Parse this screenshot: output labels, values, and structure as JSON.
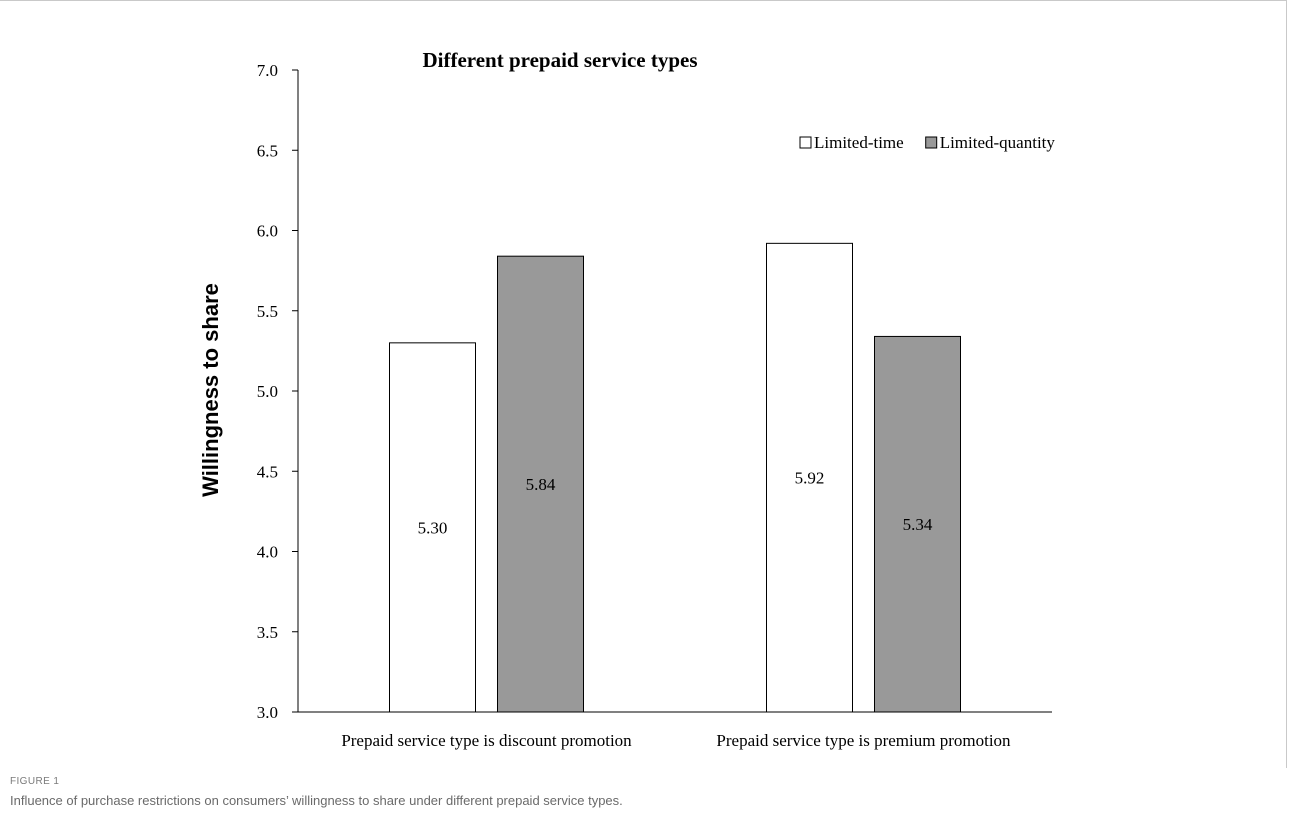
{
  "figure": {
    "label": "FIGURE 1",
    "caption": "Influence of purchase restrictions on consumers’ willingness to share under different prepaid service types."
  },
  "chart_data": {
    "type": "bar",
    "title": "Different prepaid service types",
    "xlabel": "",
    "ylabel": "Willingness to share",
    "ylim": [
      3.0,
      7.0
    ],
    "yticks": [
      "3.0",
      "3.5",
      "4.0",
      "4.5",
      "5.0",
      "5.5",
      "6.0",
      "6.5",
      "7.0"
    ],
    "categories": [
      "Prepaid service type is discount promotion",
      "Prepaid service type is premium promotion"
    ],
    "series": [
      {
        "name": "Limited-time",
        "values": [
          5.3,
          5.92
        ],
        "labels": [
          "5.30",
          "5.92"
        ],
        "color": "#ffffff"
      },
      {
        "name": "Limited-quantity",
        "values": [
          5.84,
          5.34
        ],
        "labels": [
          "5.84",
          "5.34"
        ],
        "color": "#999999"
      }
    ],
    "legend": "top-right",
    "grid": false
  }
}
